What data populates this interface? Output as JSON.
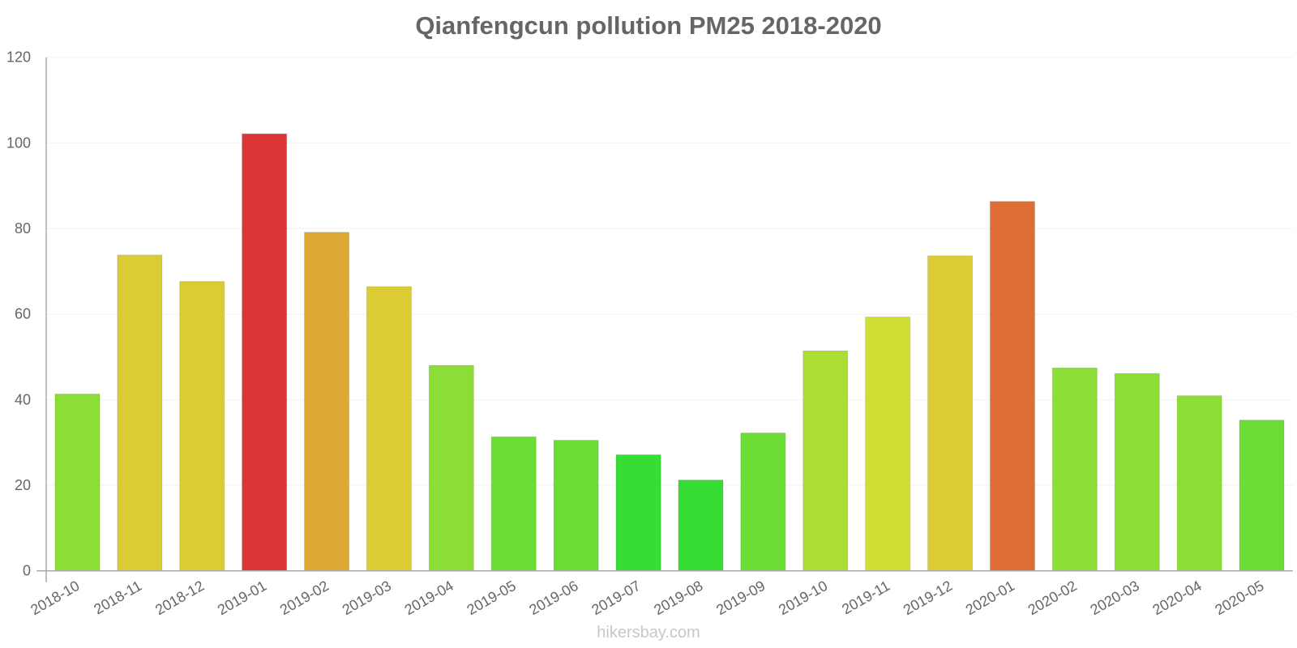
{
  "title": "Qianfengcun pollution PM25 2018-2020",
  "footer": "hikersbay.com",
  "colors": {
    "axis": "#aaaaaa",
    "grid": "#f2f2f2",
    "text": "#666666"
  },
  "chart_data": {
    "type": "bar",
    "title": "Qianfengcun pollution PM25 2018-2020",
    "xlabel": "",
    "ylabel": "",
    "ylim": [
      0,
      120
    ],
    "yticks": [
      0,
      20,
      40,
      60,
      80,
      100,
      120
    ],
    "grid": true,
    "legend": "none",
    "categories": [
      "2018-10",
      "2018-11",
      "2018-12",
      "2019-01",
      "2019-02",
      "2019-03",
      "2019-04",
      "2019-05",
      "2019-06",
      "2019-07",
      "2019-08",
      "2019-09",
      "2019-10",
      "2019-11",
      "2019-12",
      "2020-01",
      "2020-02",
      "2020-03",
      "2020-04",
      "2020-05"
    ],
    "values": [
      41.3,
      73.8,
      67.6,
      102.1,
      79.1,
      66.4,
      48.0,
      31.3,
      30.5,
      27.1,
      21.2,
      32.2,
      51.4,
      59.3,
      73.6,
      86.3,
      47.4,
      46.1,
      40.9,
      35.2
    ],
    "bar_colors": [
      "#8CDD35",
      "#DBCB34",
      "#DBCB34",
      "#DB3536",
      "#DDA935",
      "#DBCB34",
      "#8CDD35",
      "#6BDD35",
      "#6BDD35",
      "#35DD35",
      "#35DD35",
      "#6BDD35",
      "#ABDD35",
      "#CFDD35",
      "#DBCB34",
      "#DD6F35",
      "#8CDD35",
      "#8CDD35",
      "#8CDD35",
      "#6BDD35"
    ]
  }
}
